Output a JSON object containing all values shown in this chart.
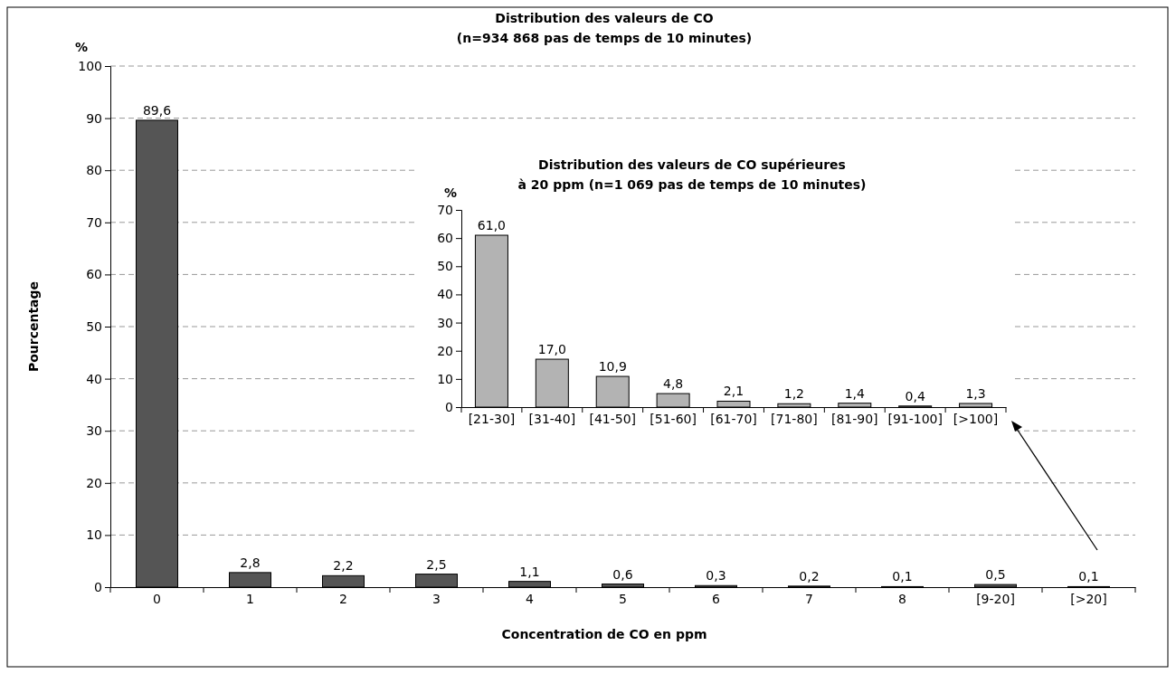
{
  "chart_data": [
    {
      "type": "bar",
      "title": "Distribution des valeurs de CO",
      "subtitle": "(n=934 868 pas de temps de 10 minutes)",
      "xlabel": "Concentration de CO en ppm",
      "ylabel": "Pourcentage",
      "annotations": [
        "%"
      ],
      "categories": [
        "0",
        "1",
        "2",
        "3",
        "4",
        "5",
        "6",
        "7",
        "8",
        "[9-20]",
        "[>20]"
      ],
      "values": [
        89.6,
        2.8,
        2.2,
        2.5,
        1.1,
        0.6,
        0.3,
        0.2,
        0.1,
        0.5,
        0.1
      ],
      "value_labels": [
        "89,6",
        "2,8",
        "2,2",
        "2,5",
        "1,1",
        "0,6",
        "0,3",
        "0,2",
        "0,1",
        "0,5",
        "0,1"
      ],
      "color": "#555555",
      "ylim": [
        0,
        100
      ],
      "yticks": [
        0,
        10,
        20,
        30,
        40,
        50,
        60,
        70,
        80,
        90,
        100
      ],
      "grid": "y"
    },
    {
      "type": "bar",
      "title": "Distribution des valeurs de CO supérieures",
      "subtitle": "à 20 ppm (n=1 069 pas de temps de 10 minutes)",
      "ylabel": "%",
      "categories": [
        "[21-30]",
        "[31-40]",
        "[41-50]",
        "[51-60]",
        "[61-70]",
        "[71-80]",
        "[81-90]",
        "[91-100]",
        "[>100]"
      ],
      "values": [
        61.0,
        17.0,
        10.9,
        4.8,
        2.1,
        1.2,
        1.4,
        0.4,
        1.3
      ],
      "value_labels": [
        "61,0",
        "17,0",
        "10,9",
        "4,8",
        "2,1",
        "1,2",
        "1,4",
        "0,4",
        "1,3"
      ],
      "color": "#b3b3b3",
      "ylim": [
        0,
        70
      ],
      "yticks": [
        0,
        10,
        20,
        30,
        40,
        50,
        60,
        70
      ]
    }
  ]
}
